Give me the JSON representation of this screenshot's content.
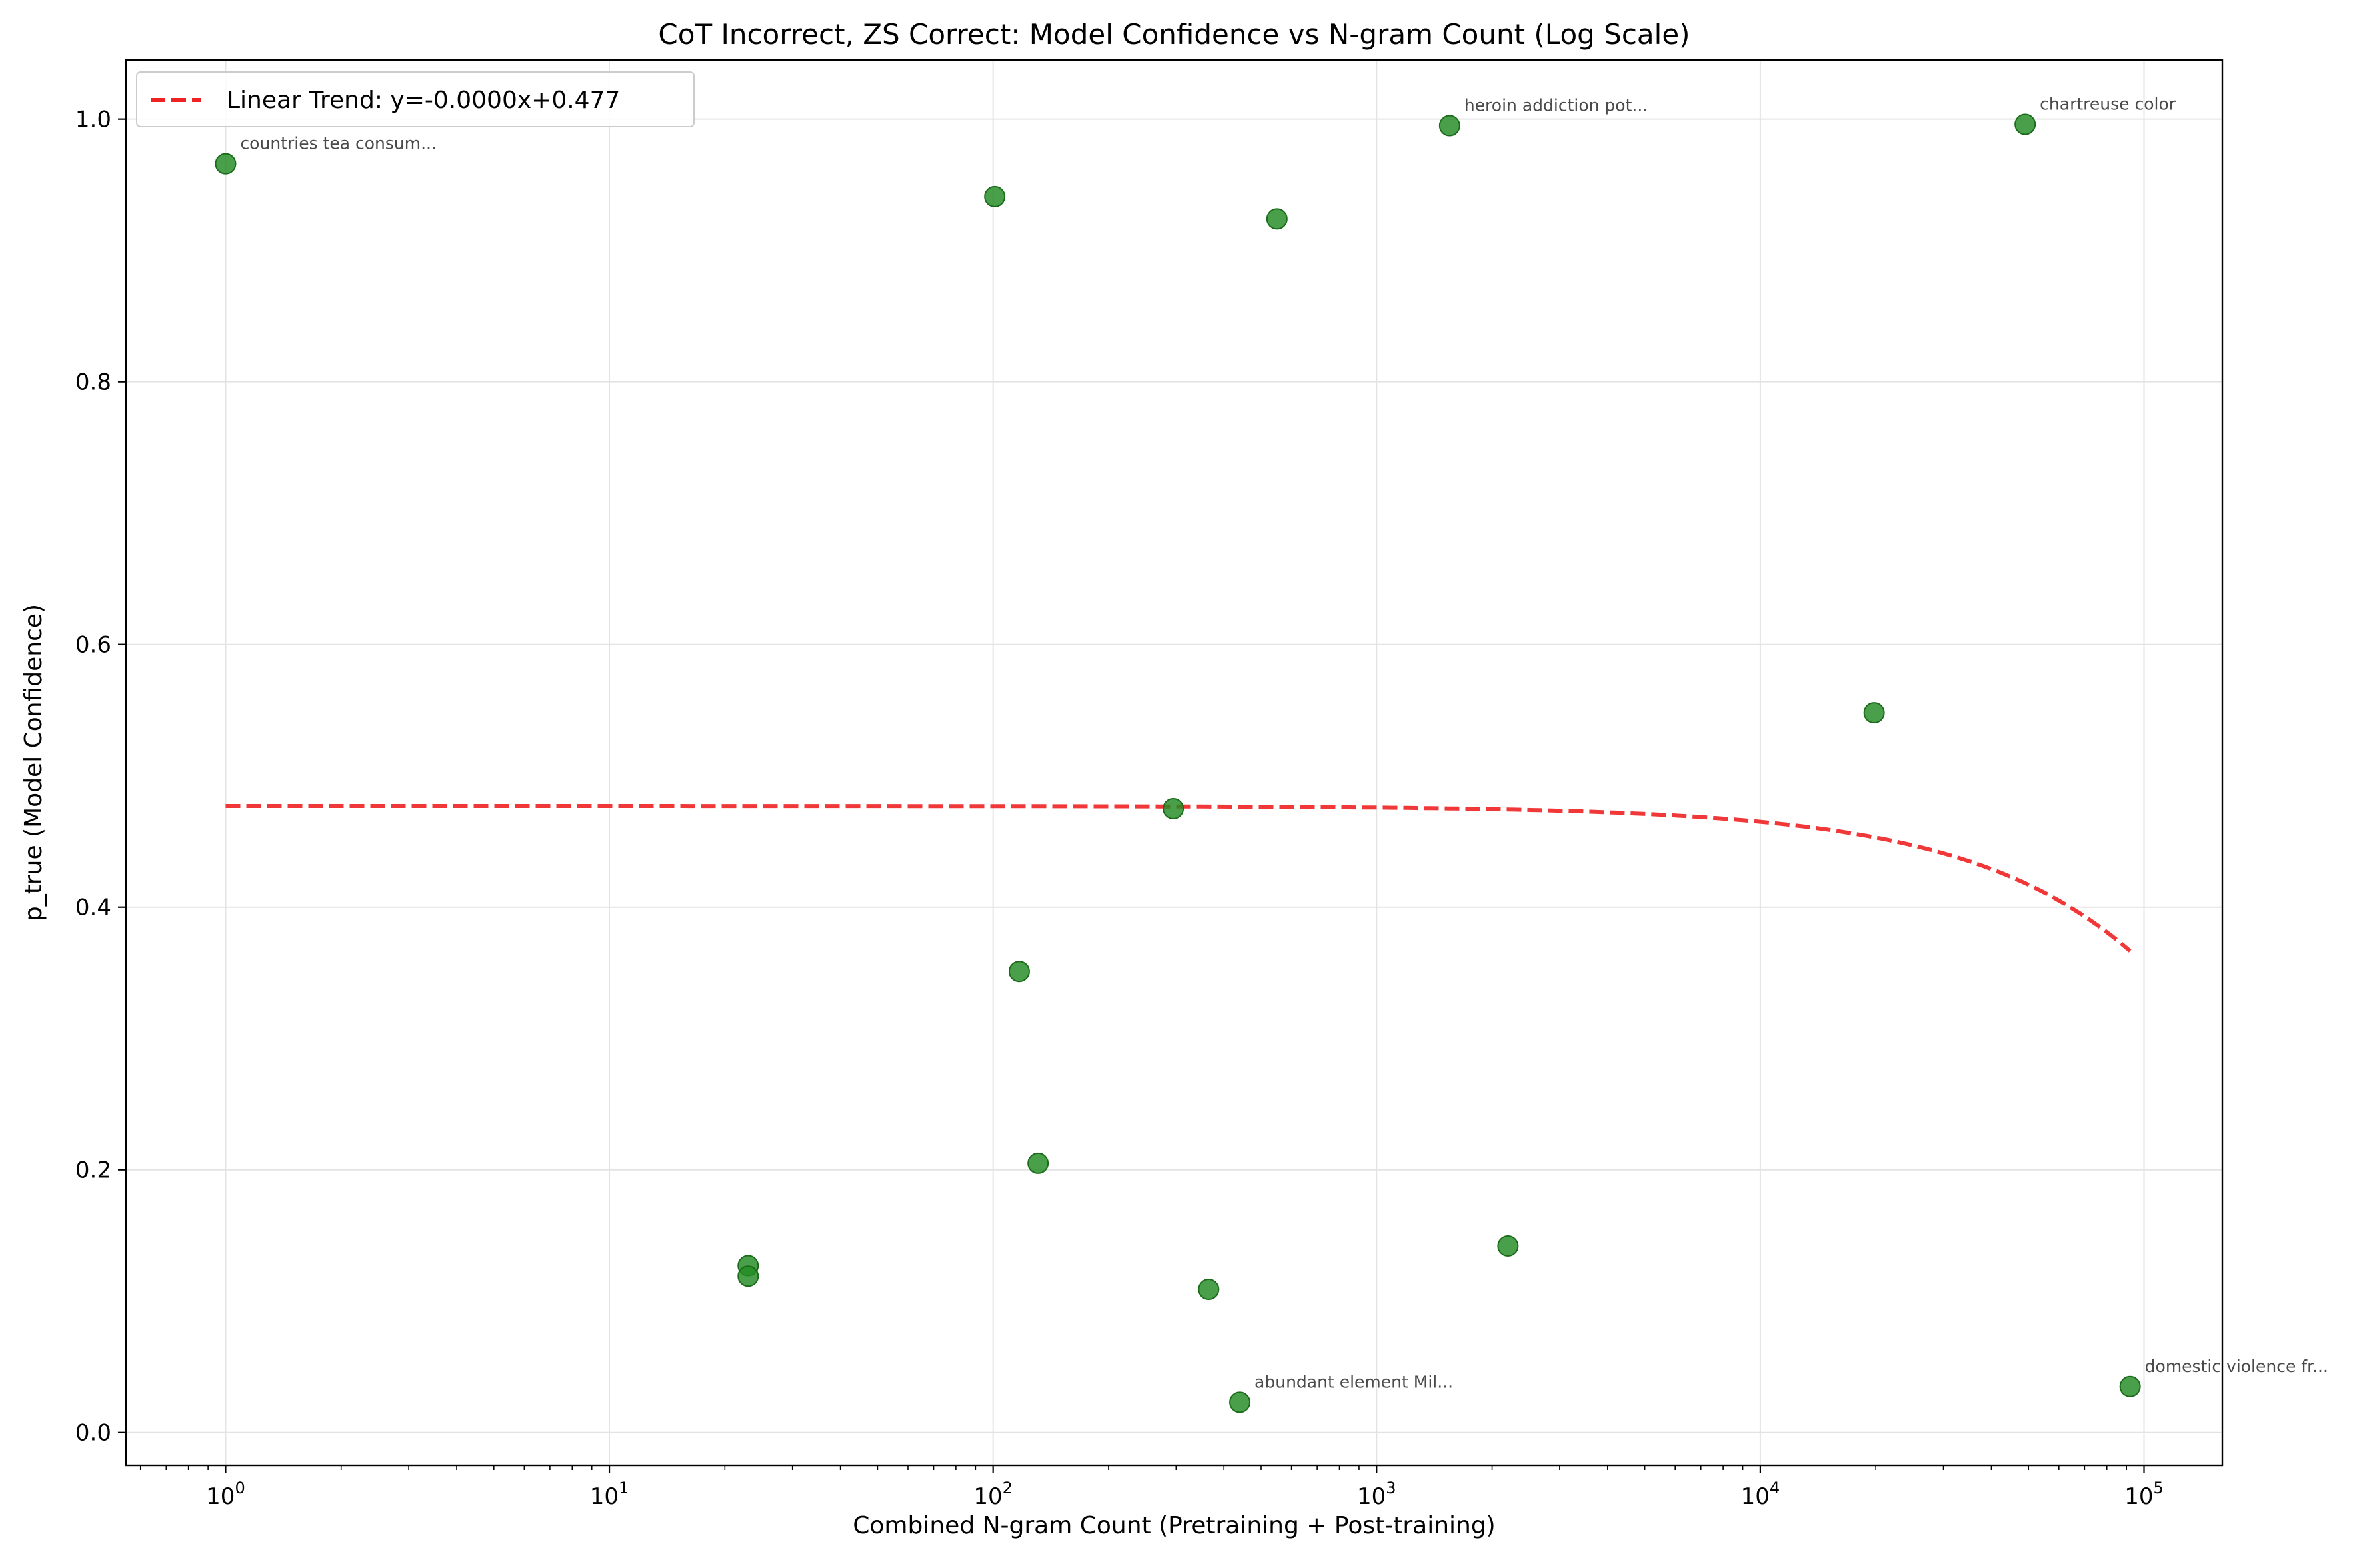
{
  "chart_data": {
    "type": "scatter",
    "title": "CoT Incorrect, ZS Correct: Model Confidence vs N-gram Count (Log Scale)",
    "xlabel": "Combined N-gram Count (Pretraining + Post-training)",
    "ylabel": "p_true (Model Confidence)",
    "x_scale": "log",
    "xlim": [
      0.55,
      160000
    ],
    "ylim": [
      -0.025,
      1.045
    ],
    "x_ticks": [
      {
        "value": 1,
        "base": "10",
        "exp": "0"
      },
      {
        "value": 10,
        "base": "10",
        "exp": "1"
      },
      {
        "value": 100,
        "base": "10",
        "exp": "2"
      },
      {
        "value": 1000,
        "base": "10",
        "exp": "3"
      },
      {
        "value": 10000,
        "base": "10",
        "exp": "4"
      },
      {
        "value": 100000,
        "base": "10",
        "exp": "5"
      }
    ],
    "y_ticks": [
      {
        "value": 0.0,
        "label": "0.0"
      },
      {
        "value": 0.2,
        "label": "0.2"
      },
      {
        "value": 0.4,
        "label": "0.4"
      },
      {
        "value": 0.6,
        "label": "0.6"
      },
      {
        "value": 0.8,
        "label": "0.8"
      },
      {
        "value": 1.0,
        "label": "1.0"
      }
    ],
    "grid": true,
    "legend_position": "top-left",
    "points": [
      {
        "x": 1,
        "y": 0.966,
        "label": "countries tea consum..."
      },
      {
        "x": 101,
        "y": 0.941,
        "label": ""
      },
      {
        "x": 550,
        "y": 0.924,
        "label": ""
      },
      {
        "x": 1550,
        "y": 0.995,
        "label": "heroin addiction pot..."
      },
      {
        "x": 49000,
        "y": 0.996,
        "label": "chartreuse color"
      },
      {
        "x": 19800,
        "y": 0.548,
        "label": ""
      },
      {
        "x": 295,
        "y": 0.475,
        "label": ""
      },
      {
        "x": 117,
        "y": 0.351,
        "label": ""
      },
      {
        "x": 131,
        "y": 0.205,
        "label": ""
      },
      {
        "x": 23,
        "y": 0.127,
        "label": ""
      },
      {
        "x": 23,
        "y": 0.119,
        "label": ""
      },
      {
        "x": 365,
        "y": 0.109,
        "label": ""
      },
      {
        "x": 2200,
        "y": 0.142,
        "label": ""
      },
      {
        "x": 440,
        "y": 0.023,
        "label": "abundant element Mil..."
      },
      {
        "x": 92000,
        "y": 0.035,
        "label": "domestic violence fr..."
      }
    ],
    "trend": {
      "name": "Linear Trend: y=-0.0000x+0.477",
      "slope": -1.2e-06,
      "intercept": 0.477,
      "x_range": [
        1,
        92000
      ],
      "color": "#ee2222"
    },
    "point_color": "#228b22"
  }
}
